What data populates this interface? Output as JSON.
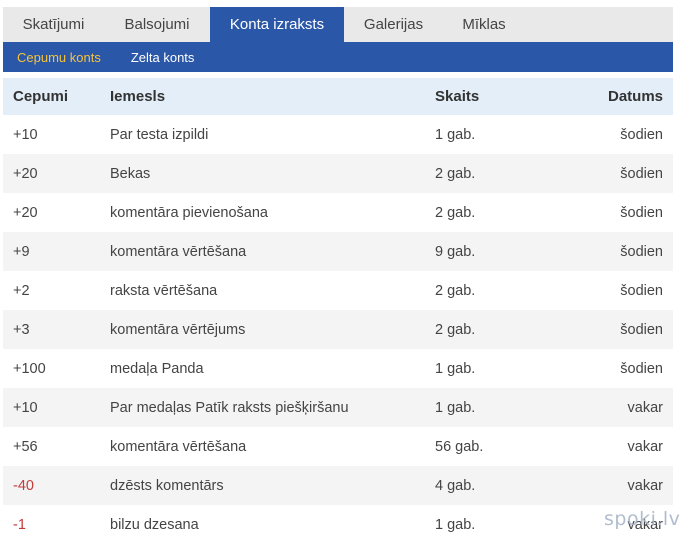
{
  "tabs": [
    {
      "label": "Skatījumi",
      "active": false
    },
    {
      "label": "Balsojumi",
      "active": false
    },
    {
      "label": "Konta izraksts",
      "active": true
    },
    {
      "label": "Galerijas",
      "active": false
    },
    {
      "label": "Mīklas",
      "active": false
    }
  ],
  "subtabs": [
    {
      "label": "Cepumu konts",
      "active": true
    },
    {
      "label": "Zelta konts",
      "active": false
    }
  ],
  "table": {
    "headers": {
      "amount": "Cepumi",
      "reason": "Iemesls",
      "count": "Skaits",
      "date": "Datums"
    },
    "rows": [
      {
        "amount": "+10",
        "reason": "Par testa izpildi",
        "count": "1 gab.",
        "date": "šodien"
      },
      {
        "amount": "+20",
        "reason": "Bekas",
        "count": "2 gab.",
        "date": "šodien"
      },
      {
        "amount": "+20",
        "reason": "komentāra pievienošana",
        "count": "2 gab.",
        "date": "šodien"
      },
      {
        "amount": "+9",
        "reason": "komentāra vērtēšana",
        "count": "9 gab.",
        "date": "šodien"
      },
      {
        "amount": "+2",
        "reason": "raksta vērtēšana",
        "count": "2 gab.",
        "date": "šodien"
      },
      {
        "amount": "+3",
        "reason": "komentāra vērtējums",
        "count": "2 gab.",
        "date": "šodien"
      },
      {
        "amount": "+100",
        "reason": "medaļa Panda",
        "count": "1 gab.",
        "date": "šodien"
      },
      {
        "amount": "+10",
        "reason": "Par medaļas Patīk raksts piešķiršanu",
        "count": "1 gab.",
        "date": "vakar"
      },
      {
        "amount": "+56",
        "reason": "komentāra vērtēšana",
        "count": "56 gab.",
        "date": "vakar"
      },
      {
        "amount": "-40",
        "reason": "dzēsts komentārs",
        "count": "4 gab.",
        "date": "vakar"
      },
      {
        "amount": "-1",
        "reason": "bilzu dzesana",
        "count": "1 gab.",
        "date": "vakar"
      }
    ]
  },
  "watermark": "spoki.lv",
  "colors": {
    "accent": "#2b57a8",
    "active_subtab": "#f5c33b",
    "positive": "#3a63b0",
    "negative": "#c43a3a"
  }
}
